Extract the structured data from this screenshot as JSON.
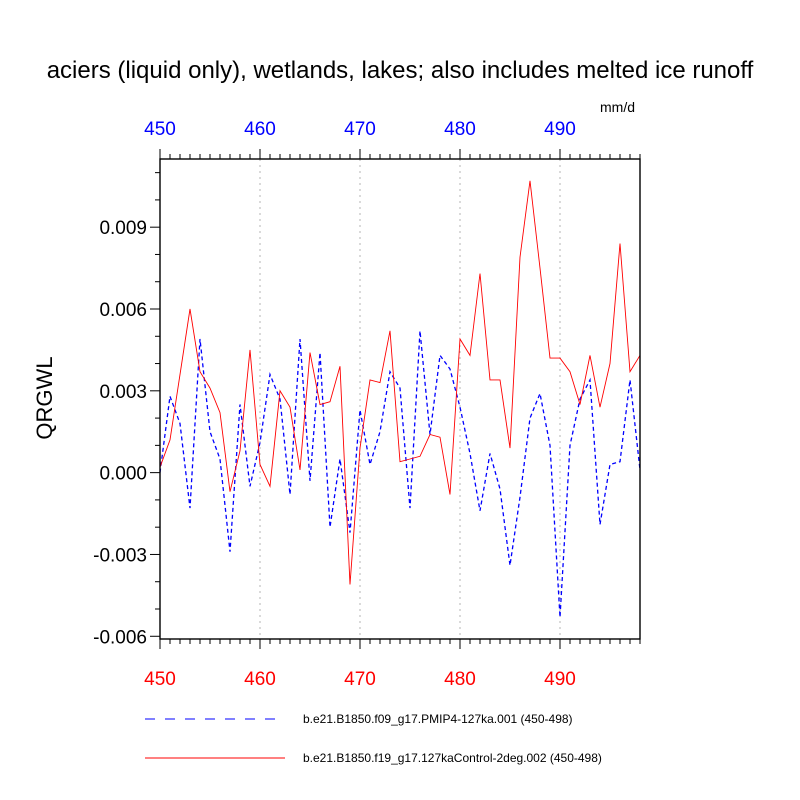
{
  "chart_data": {
    "type": "line",
    "title": "aciers (liquid only), wetlands, lakes; also includes melted ice runoff",
    "units": "mm/d",
    "ylabel": "QRGWL",
    "xlabel": "",
    "xlim": [
      450,
      498
    ],
    "ylim": [
      -0.0061,
      0.0115
    ],
    "x_ticks": [
      450,
      460,
      470,
      480,
      490
    ],
    "y_ticks": [
      -0.006,
      -0.003,
      0.0,
      0.003,
      0.006,
      0.009
    ],
    "y_tick_labels": [
      "-0.006",
      "-0.003",
      "0.000",
      "0.003",
      "0.006",
      "0.009"
    ],
    "grid": "vertical dotted at major x ticks",
    "colors": {
      "bottom_axis": "#ff0000",
      "top_axis": "#0000ff",
      "pmip": "#0000ff",
      "control": "#ff0000"
    },
    "x": [
      450,
      451,
      452,
      453,
      454,
      455,
      456,
      457,
      458,
      459,
      460,
      461,
      462,
      463,
      464,
      465,
      466,
      467,
      468,
      469,
      470,
      471,
      472,
      473,
      474,
      475,
      476,
      477,
      478,
      479,
      480,
      481,
      482,
      483,
      484,
      485,
      486,
      487,
      488,
      489,
      490,
      491,
      492,
      493,
      494,
      495,
      496,
      497,
      498
    ],
    "series": [
      {
        "name": "b.e21.B1850.f09_g17.PMIP4-127ka.001 (450-498)",
        "style": "dashed",
        "values": [
          0.0,
          0.0028,
          0.0018,
          -0.0013,
          0.0049,
          0.0015,
          0.0005,
          -0.0029,
          0.0025,
          -0.0005,
          0.0011,
          0.0036,
          0.0027,
          -0.0008,
          0.0049,
          -0.0003,
          0.0044,
          -0.002,
          0.0005,
          -0.0022,
          0.0023,
          0.0003,
          0.0015,
          0.0037,
          0.0031,
          -0.0013,
          0.0052,
          0.0014,
          0.0043,
          0.0038,
          0.0024,
          0.0007,
          -0.0014,
          0.0007,
          -0.0006,
          -0.0034,
          -0.0009,
          0.002,
          0.0029,
          0.001,
          -0.0053,
          0.001,
          0.0027,
          0.0034,
          -0.0019,
          0.0003,
          0.0004,
          0.0034,
          0.0001
        ]
      },
      {
        "name": "b.e21.B1850.f19_g17.127kaControl-2deg.002 (450-498)",
        "style": "solid",
        "values": [
          0.0002,
          0.0012,
          0.0036,
          0.006,
          0.0037,
          0.0031,
          0.0022,
          -0.0007,
          0.0008,
          0.0045,
          0.0003,
          -0.0005,
          0.003,
          0.0024,
          0.0001,
          0.0044,
          0.0025,
          0.0026,
          0.0039,
          -0.0041,
          0.0009,
          0.0034,
          0.0033,
          0.0052,
          0.0004,
          0.0005,
          0.0006,
          0.0014,
          0.0013,
          -0.0008,
          0.0049,
          0.0043,
          0.0073,
          0.0034,
          0.0034,
          0.0009,
          0.0079,
          0.0107,
          0.0075,
          0.0042,
          0.0042,
          0.0037,
          0.0025,
          0.0043,
          0.0024,
          0.004,
          0.0084,
          0.0037,
          0.0043
        ]
      }
    ]
  }
}
